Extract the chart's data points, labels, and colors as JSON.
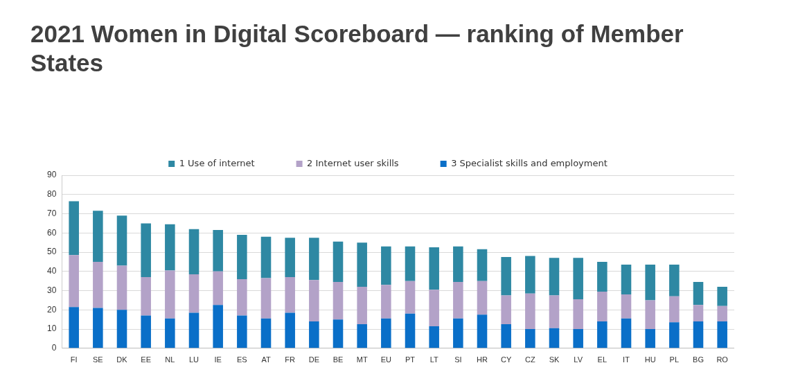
{
  "chart_data": {
    "type": "bar",
    "title": "2021 Women in Digital Scoreboard — ranking of Member States",
    "categories": [
      "FI",
      "SE",
      "DK",
      "EE",
      "NL",
      "LU",
      "IE",
      "ES",
      "AT",
      "FR",
      "DE",
      "BE",
      "MT",
      "EU",
      "PT",
      "LT",
      "SI",
      "HR",
      "CY",
      "CZ",
      "SK",
      "LV",
      "EL",
      "IT",
      "HU",
      "PL",
      "BG",
      "RO"
    ],
    "stacked": true,
    "series": [
      {
        "name": "3 Specialist skills and employment",
        "color": "#0a6fc8",
        "values": [
          21.5,
          21,
          20,
          17,
          15.5,
          18.5,
          22.5,
          17,
          15.5,
          18.5,
          14,
          15,
          12.5,
          15.5,
          18,
          11.5,
          15.5,
          17.5,
          12.5,
          10,
          10.5,
          10,
          14,
          15.5,
          10,
          13.5,
          14,
          14
        ]
      },
      {
        "name": "2 Internet user skills",
        "color": "#b3a2c8",
        "values": [
          27,
          24,
          23,
          20,
          25,
          20,
          17.5,
          19,
          21,
          18.5,
          21.5,
          19.5,
          19.5,
          17.5,
          17,
          19,
          19,
          17.5,
          15,
          18.5,
          17,
          15.5,
          15.5,
          12.5,
          15,
          13.5,
          8.5,
          8
        ]
      },
      {
        "name": "1 Use of internet",
        "color": "#2e88a3",
        "values": [
          28,
          26.5,
          26,
          28,
          24,
          23.5,
          21.5,
          23,
          21.5,
          20.5,
          22,
          21,
          23,
          20,
          18,
          22,
          18.5,
          16.5,
          20,
          19.5,
          19.5,
          21.5,
          15.5,
          15.5,
          18.5,
          16.5,
          12,
          10
        ]
      }
    ],
    "ylim": [
      0,
      90
    ],
    "yticks": [
      0,
      10,
      20,
      30,
      40,
      50,
      60,
      70,
      80,
      90
    ],
    "grid": "y",
    "legend": "top"
  }
}
